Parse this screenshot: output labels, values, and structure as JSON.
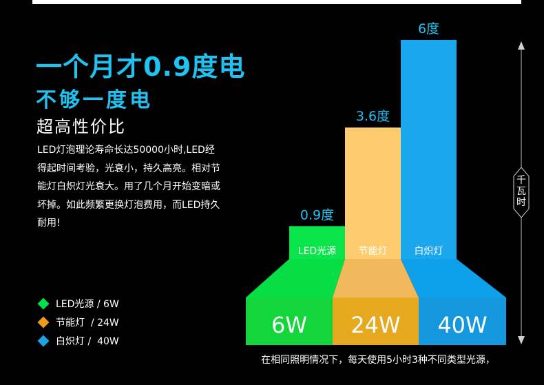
{
  "header": {
    "headline": "一个月才0.9度电",
    "subhead": "不够一度电",
    "tagline": "超高性价比"
  },
  "description_lines": [
    "LED灯泡理论寿命长达50000小时,LED经",
    "得起时间考验，光衰小，持久高亮。相对节",
    "能灯白炽灯光衰大。用了几个月开始变暗或",
    "坏掉。如此频繁更换灯泡费用，而LED持久",
    "耐用!"
  ],
  "legend": [
    {
      "label": "LED光源 / 6W",
      "color": "#00e04a"
    },
    {
      "label": "节能灯  / 24W",
      "color": "#ee9b16"
    },
    {
      "label": "白炽灯 /  40W",
      "color": "#1aa5e6"
    }
  ],
  "chart_data": {
    "type": "bar",
    "categories": [
      "LED光源",
      "节能灯",
      "白炽灯"
    ],
    "values": [
      0.9,
      3.6,
      6
    ],
    "value_labels": [
      "0.9度",
      "3.6度",
      "6度"
    ],
    "wattage_labels": [
      "6W",
      "24W",
      "40W"
    ],
    "axis_label": "千瓦时",
    "colors": [
      "#0be54c",
      "#fccc6e",
      "#1aa7ee"
    ],
    "base_top_colors": [
      "#07de46",
      "#f2b85c",
      "#0ea0e8"
    ],
    "base_front_colors": [
      "#12d63b",
      "#e6a81f",
      "#1597de"
    ],
    "footnote": "在相同照明情况下，每天使用5小时3种不同类型光源，"
  }
}
